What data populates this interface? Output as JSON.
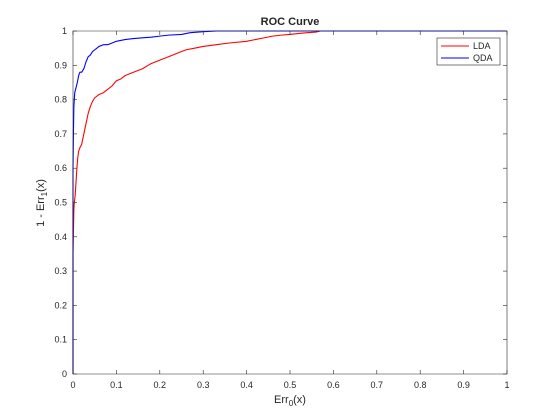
{
  "chart_data": {
    "type": "line",
    "title": "ROC Curve",
    "xlabel": {
      "main": "Err",
      "sub": "0",
      "tail": "(x)"
    },
    "ylabel": {
      "main": "1 - Err",
      "sub": "1",
      "tail": "(x)"
    },
    "xlim": [
      0,
      1
    ],
    "ylim": [
      0,
      1
    ],
    "xticks": [
      "0",
      "0.1",
      "0.2",
      "0.3",
      "0.4",
      "0.5",
      "0.6",
      "0.7",
      "0.8",
      "0.9",
      "1"
    ],
    "yticks": [
      "0",
      "0.1",
      "0.2",
      "0.3",
      "0.4",
      "0.5",
      "0.6",
      "0.7",
      "0.8",
      "0.9",
      "1"
    ],
    "grid": false,
    "legend_position": "top-right",
    "series": [
      {
        "name": "LDA",
        "color": "#ff0000",
        "x": [
          0,
          0,
          0.002,
          0.003,
          0.005,
          0.007,
          0.009,
          0.011,
          0.013,
          0.016,
          0.02,
          0.025,
          0.03,
          0.035,
          0.04,
          0.045,
          0.05,
          0.06,
          0.07,
          0.08,
          0.09,
          0.1,
          0.11,
          0.12,
          0.14,
          0.16,
          0.18,
          0.2,
          0.22,
          0.24,
          0.26,
          0.28,
          0.3,
          0.33,
          0.36,
          0.4,
          0.42,
          0.44,
          0.46,
          0.48,
          0.5,
          0.52,
          0.54,
          0.56,
          0.57,
          0.6,
          0.7,
          0.8,
          0.9,
          1.0
        ],
        "y": [
          0,
          0.35,
          0.48,
          0.5,
          0.52,
          0.56,
          0.6,
          0.63,
          0.65,
          0.66,
          0.67,
          0.7,
          0.73,
          0.76,
          0.78,
          0.795,
          0.805,
          0.815,
          0.82,
          0.83,
          0.84,
          0.855,
          0.86,
          0.87,
          0.88,
          0.89,
          0.905,
          0.915,
          0.925,
          0.935,
          0.945,
          0.95,
          0.955,
          0.96,
          0.965,
          0.97,
          0.975,
          0.98,
          0.985,
          0.988,
          0.99,
          0.993,
          0.995,
          0.997,
          1.0,
          1.0,
          1.0,
          1.0,
          1.0,
          1.0
        ]
      },
      {
        "name": "QDA",
        "color": "#0000ff",
        "x": [
          0,
          0,
          0.001,
          0.002,
          0.003,
          0.004,
          0.006,
          0.008,
          0.01,
          0.013,
          0.016,
          0.02,
          0.025,
          0.03,
          0.035,
          0.04,
          0.045,
          0.05,
          0.055,
          0.06,
          0.07,
          0.08,
          0.09,
          0.1,
          0.12,
          0.14,
          0.16,
          0.18,
          0.2,
          0.22,
          0.25,
          0.27,
          0.3,
          0.33,
          0.4,
          0.5,
          0.6,
          0.7,
          0.8,
          0.9,
          1.0
        ],
        "y": [
          0,
          0.6,
          0.7,
          0.78,
          0.8,
          0.82,
          0.83,
          0.84,
          0.85,
          0.87,
          0.88,
          0.88,
          0.89,
          0.91,
          0.925,
          0.93,
          0.94,
          0.945,
          0.95,
          0.955,
          0.96,
          0.96,
          0.965,
          0.97,
          0.975,
          0.978,
          0.98,
          0.982,
          0.985,
          0.988,
          0.99,
          0.995,
          0.998,
          1.0,
          1.0,
          1.0,
          1.0,
          1.0,
          1.0,
          1.0,
          1.0
        ]
      }
    ]
  }
}
